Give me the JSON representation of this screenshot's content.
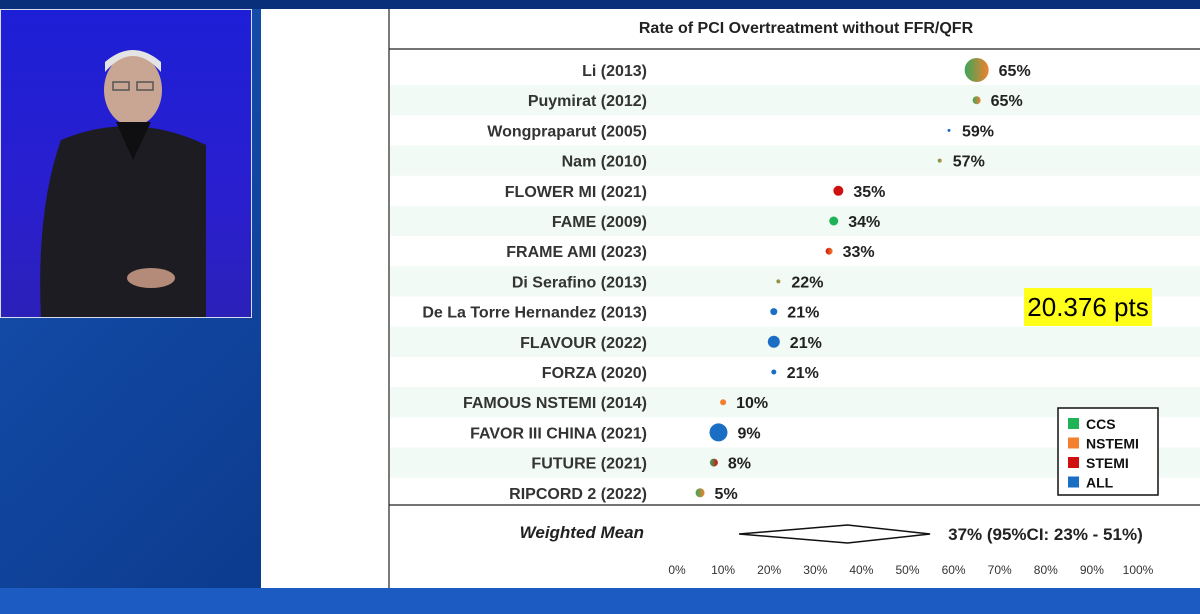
{
  "chart_data": {
    "type": "scatter",
    "title": "Rate of PCI Overtreatment without FFR/QFR",
    "x_ticks": [
      "0%",
      "10%",
      "20%",
      "30%",
      "40%",
      "50%",
      "60%",
      "70%",
      "80%",
      "90%",
      "100%"
    ],
    "xlim": [
      0,
      100
    ],
    "studies": [
      {
        "label": "Li (2013)",
        "value": 65,
        "value_label": "65%",
        "size": 12,
        "colors": [
          "#3aa65a",
          "#f2802e"
        ]
      },
      {
        "label": "Puymirat (2012)",
        "value": 65,
        "value_label": "65%",
        "size": 4,
        "colors": [
          "#3aa65a",
          "#f2802e"
        ]
      },
      {
        "label": "Wongpraparut (2005)",
        "value": 59,
        "value_label": "59%",
        "size": 1.5,
        "colors": [
          "#1a6fc4"
        ]
      },
      {
        "label": "Nam (2010)",
        "value": 57,
        "value_label": "57%",
        "size": 2,
        "colors": [
          "#3aa65a",
          "#f2802e"
        ]
      },
      {
        "label": "FLOWER MI (2021)",
        "value": 35,
        "value_label": "35%",
        "size": 5,
        "colors": [
          "#d01010"
        ]
      },
      {
        "label": "FAME (2009)",
        "value": 34,
        "value_label": "34%",
        "size": 4.5,
        "colors": [
          "#1fb357"
        ]
      },
      {
        "label": "FRAME AMI (2023)",
        "value": 33,
        "value_label": "33%",
        "size": 3.5,
        "colors": [
          "#d01010",
          "#f2802e"
        ]
      },
      {
        "label": "Di Serafino (2013)",
        "value": 22,
        "value_label": "22%",
        "size": 2,
        "colors": [
          "#3aa65a",
          "#f2802e"
        ]
      },
      {
        "label": "De La Torre Hernandez (2013)",
        "value": 21,
        "value_label": "21%",
        "size": 3.5,
        "colors": [
          "#1a6fc4"
        ]
      },
      {
        "label": "FLAVOUR (2022)",
        "value": 21,
        "value_label": "21%",
        "size": 6,
        "colors": [
          "#1a6fc4"
        ]
      },
      {
        "label": "FORZA (2020)",
        "value": 21,
        "value_label": "21%",
        "size": 2.5,
        "colors": [
          "#1a6fc4"
        ]
      },
      {
        "label": "FAMOUS NSTEMI (2014)",
        "value": 10,
        "value_label": "10%",
        "size": 3,
        "colors": [
          "#f2802e"
        ]
      },
      {
        "label": "FAVOR III CHINA (2021)",
        "value": 9,
        "value_label": "9%",
        "size": 9,
        "colors": [
          "#1a6fc4"
        ]
      },
      {
        "label": "FUTURE (2021)",
        "value": 8,
        "value_label": "8%",
        "size": 4,
        "colors": [
          "#3aa65a",
          "#d01010"
        ]
      },
      {
        "label": "RIPCORD 2 (2022)",
        "value": 5,
        "value_label": "5%",
        "size": 4.5,
        "colors": [
          "#3aa65a",
          "#f2802e"
        ]
      }
    ],
    "weighted_mean": {
      "label": "Weighted Mean",
      "value": 37,
      "ci_low": 23,
      "ci_high": 51,
      "value_label": "37% (95%CI: 23% - 51%)"
    },
    "legend": {
      "placement": "bottom-right",
      "entries": [
        {
          "name": "CCS",
          "color": "#1fb357"
        },
        {
          "name": "NSTEMI",
          "color": "#f2802e"
        },
        {
          "name": "STEMI",
          "color": "#d01010"
        },
        {
          "name": "ALL",
          "color": "#1a6fc4"
        }
      ]
    }
  },
  "overlay": {
    "highlight_text": "20.376 pts"
  },
  "colors": {
    "stage_blue": "#0c3c8f",
    "speaker_panel": "#2a1fcf",
    "row_stripe": "#f1faf4",
    "highlight": "#ffff1a"
  }
}
